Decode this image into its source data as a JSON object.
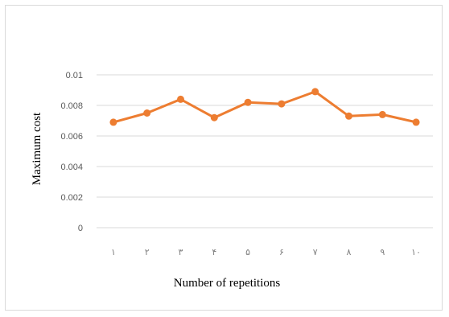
{
  "chart_data": {
    "type": "line",
    "categories": [
      "١",
      "٢",
      "٣",
      "۴",
      "۵",
      "۶",
      "٧",
      "٨",
      "٩",
      "١٠"
    ],
    "series": [
      {
        "values": [
          0.0069,
          0.0075,
          0.0084,
          0.0072,
          0.0082,
          0.0081,
          0.0089,
          0.0073,
          0.0074,
          0.0069
        ]
      }
    ],
    "title": "",
    "xlabel": "Number of repetitions",
    "ylabel": "Maximum cost",
    "ylim": [
      0,
      0.01
    ],
    "yticks": [
      "0",
      "0.002",
      "0.004",
      "0.006",
      "0.008",
      "0.01"
    ],
    "grid": true,
    "legend": "none",
    "colors": {
      "series": "#ED7D31",
      "grid": "#d9d9d9",
      "frame": "#d9d9d9"
    }
  }
}
